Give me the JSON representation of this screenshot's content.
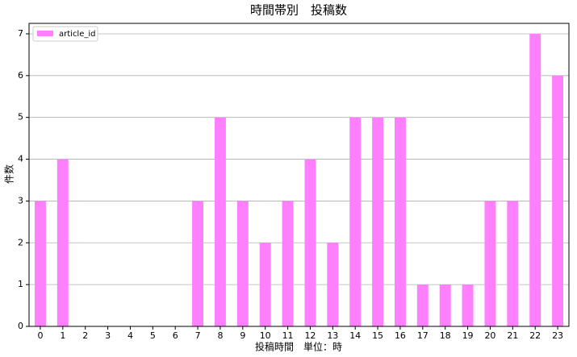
{
  "chart_data": {
    "type": "bar",
    "title": "時間帯別　投稿数",
    "x_label": "投稿時間　単位：時",
    "y_label": "件数",
    "categories": [
      "0",
      "1",
      "2",
      "3",
      "4",
      "5",
      "6",
      "7",
      "8",
      "9",
      "10",
      "11",
      "12",
      "13",
      "14",
      "15",
      "16",
      "17",
      "18",
      "19",
      "20",
      "21",
      "22",
      "23"
    ],
    "series": [
      {
        "name": "article_id",
        "color": "#ff80ff",
        "values": [
          3,
          4,
          0,
          0,
          0,
          0,
          0,
          3,
          5,
          3,
          2,
          3,
          4,
          2,
          5,
          5,
          5,
          1,
          1,
          1,
          3,
          3,
          7,
          6
        ]
      }
    ],
    "ylim": [
      0,
      7.25
    ],
    "yticks": [
      0,
      1,
      2,
      3,
      4,
      5,
      6,
      7
    ],
    "grid": true,
    "legend": "upper-left"
  }
}
